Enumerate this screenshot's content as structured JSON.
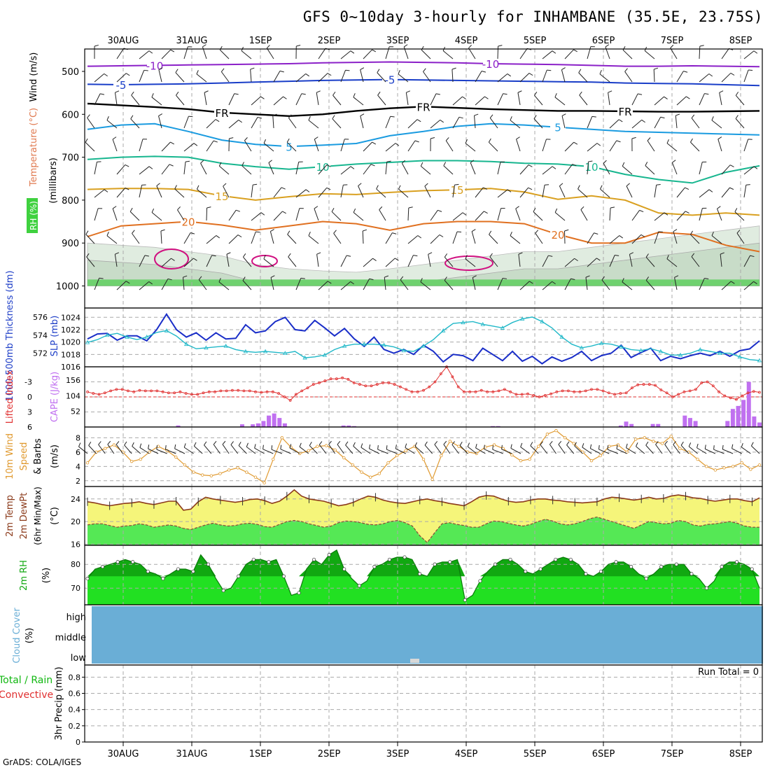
{
  "title": "GFS 0~10day 3-hourly for INHAMBANE (35.5E, 23.75S)",
  "credit": "GrADS: COLA/IGES",
  "colors": {
    "grid": "#aaaaaa",
    "rh_light": "#e0ece0",
    "rh_mid": "#c8dcc8",
    "rh_dark": "#6fd16f",
    "t_m10": "#8b20c8",
    "t_m5": "#1a3ec8",
    "t_fr": "#000000",
    "t_5": "#1a9be0",
    "t_10": "#17b68f",
    "t_15": "#d9a020",
    "t_20": "#e07020",
    "rh_contour": "#d01080",
    "slp": "#1a2ec8",
    "thickness": "#20b8c8",
    "cape": "#c070f0",
    "lifted": "#e03030",
    "wind_speed": "#e09a30",
    "temp2m": "#8b3a1a",
    "temp_fill": "#f5f57a",
    "temp_hot": "#f0a040",
    "dewpoint_fill": "#55e855",
    "rh2m": "#11a811",
    "rh2m_fill": "#22e022",
    "cloud": "#6aaed6"
  },
  "chart_data": [
    {
      "type": "area",
      "panel": "wind-temp-rh-profile",
      "ylabel_segments": [
        "RH (%)",
        "Temperature (°C)",
        "Wind (m/s)"
      ],
      "ylabel_unit": "(millibars)",
      "y_ticks": [
        500,
        600,
        700,
        800,
        900,
        1000
      ],
      "ylim": [
        1000,
        450
      ],
      "x_ticks": [
        "30AUG",
        "31AUG",
        "1SEP",
        "2SEP",
        "3SEP",
        "4SEP",
        "5SEP",
        "6SEP",
        "7SEP",
        "8SEP"
      ],
      "contours": [
        {
          "label": "-10",
          "levels": [
            488,
            487,
            486,
            485,
            484,
            483,
            482,
            480,
            479,
            478,
            479,
            480,
            482,
            483,
            484,
            486,
            488,
            488,
            487,
            488,
            489
          ]
        },
        {
          "label": "-5",
          "levels": [
            530,
            531,
            530,
            529,
            527,
            525,
            523,
            521,
            520,
            519,
            520,
            521,
            522,
            523,
            524,
            525,
            527,
            528,
            529,
            531,
            533
          ]
        },
        {
          "label": "FR",
          "levels": [
            575,
            579,
            583,
            588,
            596,
            600,
            604,
            600,
            592,
            586,
            582,
            585,
            588,
            590,
            592,
            592,
            593,
            594,
            594,
            593,
            592
          ]
        },
        {
          "label": "5",
          "levels": [
            635,
            625,
            622,
            640,
            660,
            670,
            675,
            672,
            668,
            650,
            640,
            628,
            622,
            625,
            630,
            635,
            640,
            642,
            644,
            646,
            648
          ]
        },
        {
          "label": "10",
          "levels": [
            705,
            700,
            698,
            700,
            714,
            722,
            728,
            722,
            716,
            712,
            708,
            708,
            710,
            714,
            716,
            722,
            740,
            752,
            760,
            735,
            720
          ]
        },
        {
          "label": "15",
          "levels": [
            775,
            773,
            773,
            775,
            790,
            800,
            792,
            785,
            787,
            782,
            778,
            776,
            773,
            781,
            798,
            790,
            800,
            830,
            835,
            830,
            835
          ]
        },
        {
          "label": "20",
          "levels": [
            885,
            860,
            855,
            850,
            858,
            870,
            860,
            850,
            855,
            870,
            855,
            850,
            850,
            855,
            880,
            900,
            900,
            875,
            880,
            905,
            920
          ]
        }
      ],
      "rh_low_level": [
        900,
        905,
        910,
        920,
        930,
        950,
        960,
        965,
        968,
        960,
        950,
        940,
        930,
        920,
        920,
        910,
        900,
        890,
        880,
        870,
        860
      ]
    },
    {
      "type": "line",
      "panel": "slp-thickness",
      "left_ylabel": "1000-500mb Thickness (dm)",
      "right_ylabel": "SLP (mb)",
      "left_ticks": [
        572,
        574,
        576
      ],
      "right_ticks": [
        1016,
        1018,
        1020,
        1022,
        1024
      ],
      "series": [
        {
          "name": "SLP (mb)",
          "axis": "right",
          "ylim": [
            1016,
            1025.5
          ],
          "values": [
            1020.5,
            1021.3,
            1021.4,
            1020.3,
            1021.0,
            1021.0,
            1020.2,
            1022.0,
            1024.5,
            1022.0,
            1020.8,
            1021.5,
            1020.3,
            1021.5,
            1020.5,
            1020.6,
            1022.8,
            1021.5,
            1021.8,
            1023.3,
            1024.0,
            1022.0,
            1021.8,
            1023.5,
            1022.3,
            1021.0,
            1022.2,
            1020.5,
            1019.3,
            1020.8,
            1018.8,
            1018.2,
            1018.8,
            1018.0,
            1019.5,
            1018.5,
            1016.8,
            1018.0,
            1017.8,
            1017.0,
            1019.0,
            1018.0,
            1017.0,
            1018.5,
            1016.9,
            1017.7,
            1016.5,
            1017.6,
            1016.9,
            1017.5,
            1018.5,
            1017.0,
            1017.8,
            1018.2,
            1019.5,
            1017.5,
            1018.3,
            1019.0,
            1017.0,
            1017.7,
            1017.3,
            1017.8,
            1018.2,
            1017.8,
            1018.5,
            1017.7,
            1018.6,
            1018.9,
            1020.2
          ]
        },
        {
          "name": "1000-500mb Thickness (dm)",
          "axis": "left",
          "ylim": [
            570.5,
            577.0
          ],
          "values": [
            573.2,
            573.5,
            574.0,
            574.2,
            573.8,
            573.5,
            573.8,
            574.3,
            574.5,
            573.9,
            573.0,
            572.5,
            572.6,
            572.7,
            572.8,
            572.4,
            572.2,
            572.1,
            572.2,
            572.1,
            572.0,
            572.2,
            571.5,
            571.6,
            571.8,
            572.4,
            572.8,
            573.0,
            573.0,
            573.0,
            572.9,
            572.7,
            572.3,
            572.2,
            572.8,
            573.5,
            574.5,
            575.3,
            575.4,
            575.5,
            575.2,
            575.0,
            574.8,
            575.4,
            575.8,
            576.0,
            575.5,
            574.8,
            573.8,
            573.0,
            572.6,
            572.8,
            573.1,
            573.0,
            572.7,
            572.4,
            572.3,
            572.5,
            572.2,
            571.8,
            571.8,
            572.0,
            572.4,
            572.2,
            572.0,
            572.0,
            571.6,
            571.3,
            571.2
          ]
        }
      ]
    },
    {
      "type": "bar",
      "panel": "cape-lifted-index",
      "left_ylabel": "Lifted Index",
      "right_ylabel": "CAPE (J/kg)",
      "li_ticks": [
        -3,
        0,
        3,
        6
      ],
      "cape_ticks": [
        52,
        104,
        156
      ],
      "cape_max": 200,
      "lifted_index_min": -6,
      "lifted_index_max": 6,
      "cape": [
        0,
        0,
        0,
        0,
        0,
        0,
        0,
        0,
        0,
        0,
        0,
        0,
        0,
        0,
        0,
        0,
        0,
        5,
        0,
        0,
        0,
        0,
        0,
        0,
        0,
        0,
        0,
        0,
        0,
        9,
        0,
        9,
        12,
        20,
        38,
        45,
        30,
        12,
        0,
        0,
        0,
        0,
        0,
        0,
        0,
        0,
        0,
        0,
        5,
        5,
        3,
        0,
        0,
        0,
        0,
        0,
        0,
        0,
        0,
        0,
        0,
        0,
        0,
        0,
        0,
        0,
        0,
        0,
        0,
        0,
        0,
        0,
        0,
        0,
        0,
        0,
        3,
        3,
        0,
        0,
        0,
        0,
        0,
        0,
        0,
        0,
        0,
        0,
        0,
        0,
        0,
        0,
        0,
        0,
        0,
        0,
        0,
        0,
        0,
        0,
        5,
        18,
        10,
        0,
        0,
        0,
        10,
        10,
        0,
        0,
        0,
        0,
        38,
        30,
        20,
        0,
        0,
        0,
        0,
        0,
        20,
        60,
        70,
        90,
        150,
        35,
        15
      ],
      "lifted_index": [
        1.0,
        0.7,
        0.5,
        0.8,
        1.2,
        1.5,
        1.5,
        1.2,
        1.0,
        1.3,
        1.2,
        1.2,
        1.2,
        1.0,
        0.8,
        0.8,
        1.0,
        0.7,
        0.5,
        0.5,
        0.8,
        1.0,
        1.0,
        1.2,
        1.2,
        1.3,
        1.3,
        1.2,
        1.2,
        1.0,
        0.9,
        1.0,
        1.0,
        0.7,
        0.0,
        -0.7,
        0.5,
        1.2,
        1.8,
        2.5,
        2.8,
        3.2,
        3.6,
        3.6,
        3.8,
        3.5,
        2.8,
        2.5,
        2.2,
        2.2,
        2.5,
        2.8,
        2.8,
        2.5,
        2.0,
        1.5,
        1.0,
        1.0,
        1.3,
        2.0,
        3.0,
        4.6,
        6.0,
        4.0,
        2.0,
        1.0,
        1.0,
        1.0,
        1.3,
        1.0,
        1.0,
        1.2,
        1.5,
        1.0,
        0.5,
        0.5,
        0.6,
        0.3,
        0.0,
        0.3,
        0.6,
        1.0,
        1.2,
        1.2,
        1.0,
        1.0,
        1.2,
        1.5,
        1.5,
        1.2,
        0.8,
        0.5,
        0.7,
        0.8,
        1.8,
        2.4,
        2.5,
        2.5,
        2.3,
        1.4,
        0.8,
        0.0,
        0.5,
        1.0,
        1.2,
        1.5,
        2.8,
        3.0,
        2.2,
        1.0,
        0.2,
        -0.2,
        -0.5,
        0.2,
        0.8,
        1.1,
        0.9
      ]
    },
    {
      "type": "line",
      "panel": "10m-wind",
      "ylabel": "10m Wind Speed & Barbs (m/s)",
      "y_ticks": [
        2,
        4,
        6,
        8
      ],
      "ylim": [
        1.2,
        9.5
      ],
      "values": [
        4.5,
        6.0,
        6.5,
        7.0,
        6.0,
        4.7,
        5.0,
        6.0,
        6.8,
        6.2,
        5.3,
        4.2,
        3.2,
        2.8,
        2.7,
        3.0,
        3.5,
        3.8,
        3.2,
        2.5,
        1.7,
        5.0,
        8.0,
        6.7,
        5.8,
        6.2,
        6.8,
        6.9,
        6.3,
        5.2,
        4.2,
        3.2,
        2.5,
        3.0,
        4.5,
        5.5,
        6.2,
        6.8,
        5.0,
        2.2,
        5.5,
        7.5,
        6.8,
        6.0,
        5.8,
        6.7,
        7.0,
        6.5,
        5.6,
        4.8,
        5.0,
        6.8,
        8.5,
        9.0,
        8.0,
        7.2,
        6.0,
        4.8,
        5.5,
        6.8,
        7.0,
        6.0,
        7.8,
        8.0,
        7.5,
        7.2,
        8.2,
        6.5,
        6.0,
        5.0,
        4.0,
        3.5,
        3.8,
        4.0,
        4.5,
        3.6,
        4.2
      ]
    },
    {
      "type": "area",
      "panel": "2m-temp-dewpoint",
      "ylabel": "2m Temp 2m DewPt (6hr Min/Max) (°C)",
      "y_ticks": [
        16,
        20,
        24
      ],
      "ylim": [
        15.8,
        26.2
      ],
      "temp": [
        23.5,
        23.3,
        23.0,
        22.8,
        23.0,
        23.2,
        23.3,
        23.5,
        23.2,
        23.0,
        23.3,
        23.6,
        23.6,
        22.0,
        22.2,
        23.5,
        24.3,
        24.0,
        23.8,
        23.6,
        23.4,
        23.6,
        23.9,
        24.0,
        23.7,
        23.2,
        23.6,
        24.5,
        25.6,
        24.5,
        24.0,
        23.8,
        23.6,
        23.2,
        22.8,
        23.0,
        23.4,
        24.0,
        24.5,
        24.3,
        23.8,
        23.5,
        23.3,
        23.2,
        23.5,
        23.8,
        24.0,
        23.7,
        23.5,
        23.2,
        23.0,
        22.8,
        23.5,
        24.3,
        24.6,
        24.5,
        24.0,
        23.6,
        23.4,
        23.5,
        23.8,
        24.0,
        24.0,
        23.8,
        23.7,
        23.5,
        23.4,
        23.3,
        23.4,
        23.5,
        24.0,
        24.3,
        24.2,
        24.0,
        23.8,
        24.0,
        24.3,
        24.0,
        24.1,
        24.5,
        24.7,
        24.5,
        24.2,
        24.1,
        23.8,
        23.6,
        23.8,
        24.0,
        24.0,
        23.7,
        23.5,
        24.2
      ],
      "dewpoint": [
        19.4,
        19.6,
        19.6,
        19.3,
        19.0,
        19.2,
        19.3,
        19.6,
        19.4,
        19.0,
        19.2,
        19.4,
        19.2,
        18.8,
        18.6,
        19.0,
        19.4,
        19.7,
        19.4,
        19.2,
        19.3,
        19.6,
        19.7,
        19.5,
        19.1,
        19.0,
        19.5,
        20.0,
        20.2,
        20.0,
        19.6,
        19.3,
        19.0,
        19.2,
        19.8,
        20.1,
        20.0,
        19.8,
        19.5,
        19.4,
        19.6,
        20.0,
        20.2,
        19.8,
        19.2,
        17.5,
        16.3,
        18.0,
        19.6,
        19.8,
        19.5,
        19.3,
        19.0,
        19.0,
        19.6,
        20.1,
        20.0,
        19.7,
        19.4,
        19.2,
        19.5,
        20.0,
        20.4,
        20.1,
        19.6,
        19.4,
        19.6,
        20.0,
        20.5,
        20.8,
        20.4,
        20.0,
        19.6,
        19.2,
        18.8,
        19.4,
        20.0,
        19.8,
        19.6,
        19.7,
        20.2,
        20.0,
        19.4,
        19.2,
        19.5,
        19.6,
        19.8,
        20.0,
        19.7,
        19.2,
        19.0,
        19.0
      ]
    },
    {
      "type": "area",
      "panel": "2m-rh",
      "ylabel": "2m RH (%)",
      "y_ticks": [
        70,
        80
      ],
      "ylim": [
        63,
        88
      ],
      "values": [
        74,
        78,
        79,
        80,
        81,
        82,
        81,
        80,
        77,
        76,
        74,
        76,
        78,
        78,
        77,
        84,
        80,
        74,
        69,
        70,
        75,
        80,
        82,
        82,
        81,
        82,
        75,
        67,
        68,
        78,
        82,
        80,
        84,
        86,
        78,
        74,
        71,
        73,
        79,
        80,
        82,
        83,
        83,
        82,
        76,
        75,
        80,
        81,
        81,
        82,
        65,
        67,
        73,
        77,
        80,
        82,
        82,
        80,
        77,
        76,
        78,
        80,
        82,
        83,
        82,
        80,
        76,
        75,
        77,
        80,
        81,
        81,
        79,
        76,
        74,
        76,
        79,
        80,
        80,
        80,
        76,
        74,
        70,
        73,
        79,
        81,
        81,
        80,
        78,
        70
      ]
    },
    {
      "type": "heatmap",
      "panel": "cloud-cover",
      "ylabel": "Cloud Cover (%)",
      "levels": [
        "high",
        "middle",
        "low"
      ],
      "coverage": "100% all levels except brief low-cloud gap near 3SEP"
    },
    {
      "type": "bar",
      "panel": "precipitation",
      "ylabel_left": "Total / Rain",
      "ylabel_left2": "Convective",
      "ylabel": "3hr Precip (mm)",
      "y_ticks": [
        "0",
        "0.2",
        "0.4",
        "0.6",
        "0.8"
      ],
      "ylim": [
        0,
        0.95
      ],
      "run_total": "Run Total = 0",
      "values": []
    }
  ]
}
